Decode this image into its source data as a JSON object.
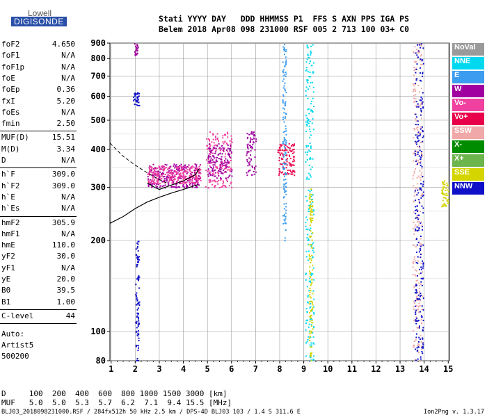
{
  "logo": {
    "line1": "Lowell",
    "line2": "DIGISONDE"
  },
  "header": {
    "line1": "Stati YYYY DAY   DDD HHMMSS P1  FFS S AXN PPS IGA PS",
    "line2": "Belem 2018 Apr08 098 231000 RSF 005 2 713 100 03+ C0"
  },
  "params_group1": [
    {
      "k": "foF2",
      "v": "4.650"
    },
    {
      "k": "foF1",
      "v": "N/A"
    },
    {
      "k": "foF1p",
      "v": "N/A"
    },
    {
      "k": "foE",
      "v": "N/A"
    },
    {
      "k": "foEp",
      "v": "0.36"
    },
    {
      "k": "fxI",
      "v": "5.20"
    },
    {
      "k": "foEs",
      "v": "N/A"
    },
    {
      "k": "fmin",
      "v": "2.50"
    }
  ],
  "params_group2": [
    {
      "k": "MUF(D)",
      "v": "15.51"
    },
    {
      "k": "M(D)",
      "v": "3.34"
    },
    {
      "k": "D",
      "v": "N/A"
    }
  ],
  "params_group3": [
    {
      "k": "h`F",
      "v": "309.0"
    },
    {
      "k": "h`F2",
      "v": "309.0"
    },
    {
      "k": "h`E",
      "v": "N/A"
    },
    {
      "k": "h`Es",
      "v": "N/A"
    }
  ],
  "params_group4": [
    {
      "k": "hmF2",
      "v": "305.9"
    },
    {
      "k": "hmF1",
      "v": "N/A"
    },
    {
      "k": "hmE",
      "v": "110.0"
    },
    {
      "k": "yF2",
      "v": "30.0"
    },
    {
      "k": "yF1",
      "v": "N/A"
    },
    {
      "k": "yE",
      "v": "20.0"
    },
    {
      "k": "B0",
      "v": "39.5"
    },
    {
      "k": "B1",
      "v": "1.00"
    }
  ],
  "params_group5": [
    {
      "k": "C-level",
      "v": "44"
    }
  ],
  "auto": [
    "Auto:",
    "Artist5",
    "500200"
  ],
  "legend": [
    {
      "label": "NoVal",
      "color": "#9a9a9a"
    },
    {
      "label": "NNE",
      "color": "#00d8f0"
    },
    {
      "label": "E",
      "color": "#3c9cf0"
    },
    {
      "label": "W",
      "color": "#a000a0"
    },
    {
      "label": "Vo-",
      "color": "#f040a0"
    },
    {
      "label": "Vo+",
      "color": "#e8004a"
    },
    {
      "label": "SSW",
      "color": "#f0a8a8"
    },
    {
      "label": "X-",
      "color": "#008c00"
    },
    {
      "label": "X+",
      "color": "#6cb44c"
    },
    {
      "label": "SSE",
      "color": "#d4d400"
    },
    {
      "label": "NNW",
      "color": "#1010c8"
    }
  ],
  "muf_table": {
    "line1": "D     100  200  400  600  800 1000 1500 3000 [km]",
    "line2": "MUF   5.0  5.0  5.3  5.7  6.2  7.1  9.4 15.5 [MHz]"
  },
  "footer": "BLJ03_2018098231000.RSF / 284fx512h 50 kHz 2.5 km / DPS-4D BLJ03 103 / 1.4 S 311.6 E",
  "version": "Ion2Png v. 1.3.17",
  "chart_data": {
    "type": "scatter",
    "x_ticks": [
      1,
      2,
      3,
      4,
      5,
      6,
      7,
      8,
      9,
      10,
      11,
      12,
      13,
      14,
      15
    ],
    "y_ticks": [
      80,
      100,
      200,
      300,
      400,
      500,
      600,
      700,
      800,
      900
    ],
    "xlim": [
      0.95,
      15.05
    ],
    "ylim": [
      80,
      900
    ],
    "grid": true,
    "legend_position": "right",
    "virtual_height_trace": [
      [
        2.5,
        310
      ],
      [
        2.8,
        300
      ],
      [
        3.0,
        295
      ],
      [
        3.5,
        305
      ],
      [
        4.0,
        315
      ],
      [
        4.5,
        330
      ],
      [
        4.65,
        345
      ]
    ],
    "true_height_profile": [
      [
        0.95,
        228
      ],
      [
        1.5,
        240
      ],
      [
        2.0,
        255
      ],
      [
        2.5,
        268
      ],
      [
        3.0,
        278
      ],
      [
        3.5,
        287
      ],
      [
        4.0,
        295
      ],
      [
        4.6,
        306
      ]
    ],
    "extrapolation_dashed": [
      [
        0.95,
        420
      ],
      [
        1.5,
        380
      ],
      [
        2.0,
        355
      ],
      [
        2.5,
        335
      ],
      [
        3.0,
        318
      ],
      [
        3.3,
        310
      ]
    ],
    "echo_clusters": [
      {
        "x": [
          2.0,
          2.15
        ],
        "y": [
          80,
          200
        ],
        "color": "#1010c8"
      },
      {
        "x": [
          1.9,
          2.15
        ],
        "y": [
          560,
          620
        ],
        "color": "#1010c8"
      },
      {
        "x": [
          1.95,
          2.1
        ],
        "y": [
          820,
          900
        ],
        "color": "#a000a0"
      },
      {
        "x": [
          2.5,
          4.7
        ],
        "y": [
          300,
          360
        ],
        "color": "#a000a0"
      },
      {
        "x": [
          2.5,
          4.7
        ],
        "y": [
          310,
          355
        ],
        "color": "#f040a0"
      },
      {
        "x": [
          4.9,
          6.0
        ],
        "y": [
          300,
          460
        ],
        "color": "#f040a0"
      },
      {
        "x": [
          5.0,
          6.0
        ],
        "y": [
          320,
          420
        ],
        "color": "#a000a0"
      },
      {
        "x": [
          6.6,
          7.0
        ],
        "y": [
          330,
          460
        ],
        "color": "#a000a0"
      },
      {
        "x": [
          7.9,
          8.6
        ],
        "y": [
          330,
          420
        ],
        "color": "#e8004a"
      },
      {
        "x": [
          8.1,
          8.25
        ],
        "y": [
          200,
          900
        ],
        "color": "#3c9cf0"
      },
      {
        "x": [
          9.05,
          9.4
        ],
        "y": [
          80,
          900
        ],
        "color": "#00d8f0"
      },
      {
        "x": [
          9.2,
          9.35
        ],
        "y": [
          80,
          300
        ],
        "color": "#d4d400"
      },
      {
        "x": [
          13.5,
          13.9
        ],
        "y": [
          80,
          900
        ],
        "color": "#f0a8a8"
      },
      {
        "x": [
          13.6,
          13.95
        ],
        "y": [
          80,
          900
        ],
        "color": "#1010c8"
      },
      {
        "x": [
          14.7,
          15.0
        ],
        "y": [
          260,
          320
        ],
        "color": "#d4d400"
      }
    ]
  }
}
